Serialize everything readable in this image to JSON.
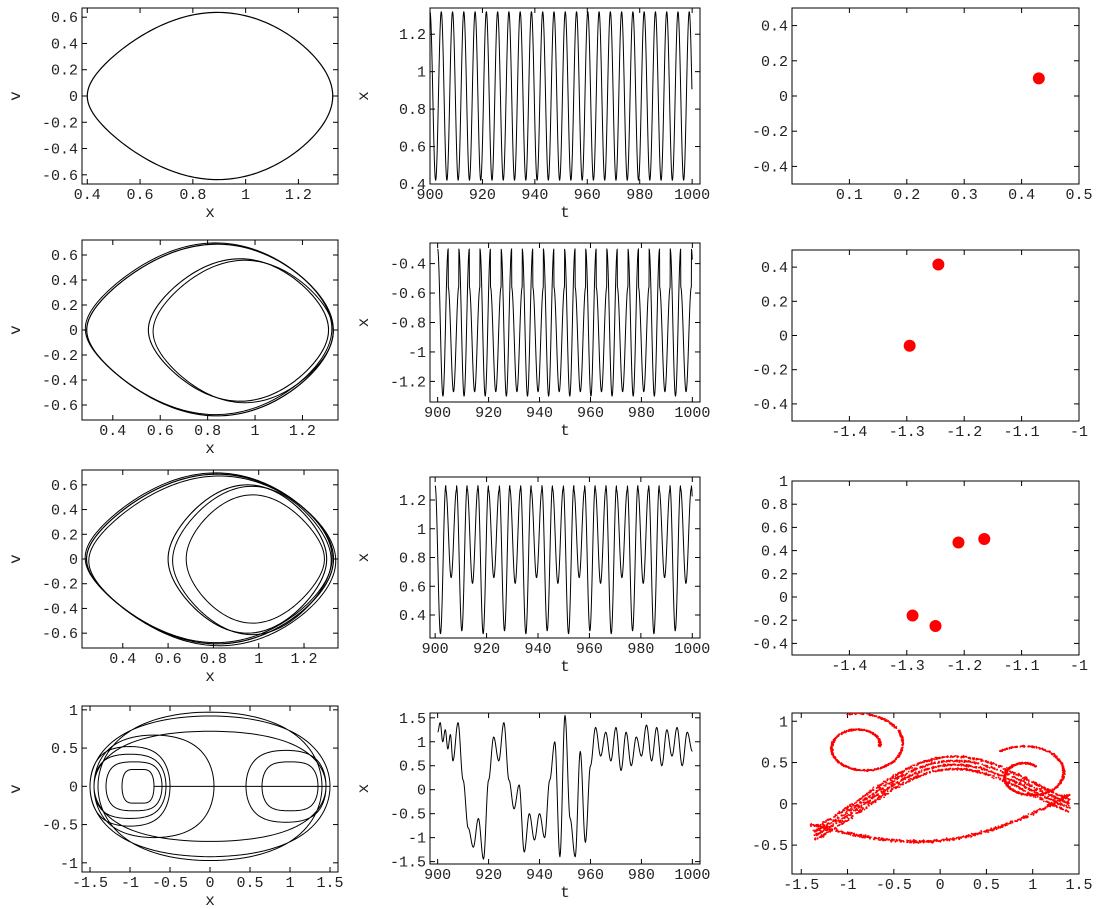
{
  "colors": {
    "trace": "#000000",
    "poincare": "#ff0000",
    "frame": "#000000"
  },
  "chart_data": [
    {
      "type": "line",
      "variant": "phase-portrait",
      "xlabel": "x",
      "ylabel": "v",
      "xlim": [
        0.38,
        1.35
      ],
      "ylim": [
        -0.67,
        0.67
      ],
      "xticks": [
        "0.4",
        "0.6",
        "0.8",
        "1",
        "1.2"
      ],
      "xtick_values": [
        0.4,
        0.6,
        0.8,
        1,
        1.2
      ],
      "yticks": [
        "-0.6",
        "-0.4",
        "-0.2",
        "0",
        "0.2",
        "0.4",
        "0.6"
      ],
      "ytick_values": [
        -0.6,
        -0.4,
        -0.2,
        0,
        0.2,
        0.4,
        0.6
      ],
      "orbit": {
        "x_min": 0.4,
        "x_max": 1.33,
        "v_amp": 0.64,
        "x_at_vmax": 0.95,
        "loops": 1
      }
    },
    {
      "type": "line",
      "variant": "time-series",
      "xlabel": "t",
      "ylabel": "x",
      "xlim": [
        900,
        1003
      ],
      "ylim": [
        0.4,
        1.34
      ],
      "xticks": [
        "900",
        "920",
        "940",
        "960",
        "980",
        "1000"
      ],
      "xtick_values": [
        900,
        920,
        940,
        960,
        980,
        1000
      ],
      "yticks": [
        "0.4",
        "0.6",
        "0.8",
        "1",
        "1.2"
      ],
      "ytick_values": [
        0.4,
        0.6,
        0.8,
        1,
        1.2
      ],
      "signal": {
        "period": 4.3,
        "min": 0.42,
        "max": 1.32,
        "t_start": 900,
        "t_end": 1000
      }
    },
    {
      "type": "scatter",
      "variant": "poincare",
      "xlabel": "",
      "ylabel": "",
      "xlim": [
        0,
        0.5
      ],
      "ylim": [
        -0.5,
        0.5
      ],
      "xticks": [
        "0.1",
        "0.2",
        "0.3",
        "0.4",
        "0.5"
      ],
      "xtick_values": [
        0.1,
        0.2,
        0.3,
        0.4,
        0.5
      ],
      "yticks": [
        "-0.4",
        "-0.2",
        "0",
        "0.2",
        "0.4"
      ],
      "ytick_values": [
        -0.4,
        -0.2,
        0,
        0.2,
        0.4
      ],
      "points": [
        [
          0.43,
          0.1
        ]
      ]
    },
    {
      "type": "line",
      "variant": "phase-portrait",
      "xlabel": "x",
      "ylabel": "v",
      "xlim": [
        0.27,
        1.35
      ],
      "ylim": [
        -0.72,
        0.72
      ],
      "xticks": [
        "0.4",
        "0.6",
        "0.8",
        "1",
        "1.2"
      ],
      "xtick_values": [
        0.4,
        0.6,
        0.8,
        1,
        1.2
      ],
      "yticks": [
        "-0.6",
        "-0.4",
        "-0.2",
        "0",
        "0.2",
        "0.4",
        "0.6"
      ],
      "ytick_values": [
        -0.6,
        -0.4,
        -0.2,
        0,
        0.2,
        0.4,
        0.6
      ],
      "orbit": {
        "x_min": 0.29,
        "x_max": 1.33,
        "v_amp": 0.69,
        "x_at_vmax": 0.9,
        "loops": 2,
        "inner": {
          "x_min": 0.55,
          "x_max": 1.31,
          "v_amp": 0.57,
          "x_at_vmax": 0.95
        }
      }
    },
    {
      "type": "line",
      "variant": "time-series",
      "xlabel": "t",
      "ylabel": "x",
      "xlim": [
        897,
        1003
      ],
      "ylim": [
        -1.34,
        -0.26
      ],
      "xticks": [
        "900",
        "920",
        "940",
        "960",
        "980",
        "1000"
      ],
      "xtick_values": [
        900,
        920,
        940,
        960,
        980,
        1000
      ],
      "yticks": [
        "-1.2",
        "-1",
        "-0.8",
        "-0.6",
        "-0.4"
      ],
      "ytick_values": [
        -1.2,
        -1,
        -0.8,
        -0.6,
        -0.4
      ],
      "signal": {
        "period": 8.3,
        "peaks": [
          -0.3,
          -0.56
        ],
        "troughs": [
          -1.3,
          -1.27
        ],
        "t_start": 900,
        "t_end": 1000
      }
    },
    {
      "type": "scatter",
      "variant": "poincare",
      "xlabel": "",
      "ylabel": "",
      "xlim": [
        -1.5,
        -1.0
      ],
      "ylim": [
        -0.5,
        0.5
      ],
      "xticks": [
        "-1.4",
        "-1.3",
        "-1.2",
        "-1.1",
        "-1"
      ],
      "xtick_values": [
        -1.4,
        -1.3,
        -1.2,
        -1.1,
        -1
      ],
      "yticks": [
        "-0.4",
        "-0.2",
        "0",
        "0.2",
        "0.4"
      ],
      "ytick_values": [
        -0.4,
        -0.2,
        0,
        0.2,
        0.4
      ],
      "points": [
        [
          -1.295,
          -0.06
        ],
        [
          -1.245,
          0.415
        ]
      ]
    },
    {
      "type": "line",
      "variant": "phase-portrait",
      "xlabel": "x",
      "ylabel": "v",
      "xlim": [
        0.22,
        1.35
      ],
      "ylim": [
        -0.72,
        0.72
      ],
      "xticks": [
        "0.4",
        "0.6",
        "0.8",
        "1",
        "1.2"
      ],
      "xtick_values": [
        0.4,
        0.6,
        0.8,
        1,
        1.2
      ],
      "yticks": [
        "-0.6",
        "-0.4",
        "-0.2",
        "0",
        "0.2",
        "0.4",
        "0.6"
      ],
      "ytick_values": [
        -0.6,
        -0.4,
        -0.2,
        0,
        0.2,
        0.4,
        0.6
      ],
      "orbit": {
        "x_min": 0.24,
        "x_max": 1.33,
        "v_amp": 0.69,
        "x_at_vmax": 0.88,
        "loops": 4,
        "inner": {
          "x_min": 0.6,
          "x_max": 1.3,
          "v_amp": 0.6,
          "x_at_vmax": 0.95
        }
      }
    },
    {
      "type": "line",
      "variant": "time-series",
      "xlabel": "t",
      "ylabel": "x",
      "xlim": [
        898,
        1003
      ],
      "ylim": [
        0.24,
        1.36
      ],
      "xticks": [
        "900",
        "920",
        "940",
        "960",
        "980",
        "1000"
      ],
      "xtick_values": [
        900,
        920,
        940,
        960,
        980,
        1000
      ],
      "yticks": [
        "0.4",
        "0.6",
        "0.8",
        "1",
        "1.2"
      ],
      "ytick_values": [
        0.4,
        0.6,
        0.8,
        1,
        1.2
      ],
      "signal": {
        "period": 16.6,
        "peaks": [
          1.3,
          1.27,
          1.3,
          1.28
        ],
        "troughs": [
          0.27,
          0.66,
          0.29,
          0.62
        ],
        "t_start": 900,
        "t_end": 1000
      }
    },
    {
      "type": "scatter",
      "variant": "poincare",
      "xlabel": "",
      "ylabel": "",
      "xlim": [
        -1.5,
        -1.0
      ],
      "ylim": [
        -0.5,
        1.0
      ],
      "xticks": [
        "-1.4",
        "-1.3",
        "-1.2",
        "-1.1",
        "-1"
      ],
      "xtick_values": [
        -1.4,
        -1.3,
        -1.2,
        -1.1,
        -1
      ],
      "yticks": [
        "-0.4",
        "-0.2",
        "0",
        "0.2",
        "0.4",
        "0.6",
        "0.8",
        "1"
      ],
      "ytick_values": [
        -0.4,
        -0.2,
        0,
        0.2,
        0.4,
        0.6,
        0.8,
        1
      ],
      "points": [
        [
          -1.29,
          -0.16
        ],
        [
          -1.25,
          -0.25
        ],
        [
          -1.21,
          0.47
        ],
        [
          -1.165,
          0.5
        ]
      ]
    },
    {
      "type": "line",
      "variant": "phase-portrait-chaotic",
      "xlabel": "x",
      "ylabel": "v",
      "xlim": [
        -1.6,
        1.6
      ],
      "ylim": [
        -1.12,
        1.05
      ],
      "xticks": [
        "-1.5",
        "-1",
        "-0.5",
        "0",
        "0.5",
        "1",
        "1.5"
      ],
      "xtick_values": [
        -1.5,
        -1,
        -0.5,
        0,
        0.5,
        1,
        1.5
      ],
      "yticks": [
        "-1",
        "-0.5",
        "0",
        "0.5",
        "1"
      ],
      "ytick_values": [
        -1,
        -0.5,
        0,
        0.5,
        1
      ]
    },
    {
      "type": "line",
      "variant": "time-series-chaotic",
      "xlabel": "t",
      "ylabel": "x",
      "xlim": [
        897,
        1003
      ],
      "ylim": [
        -1.55,
        1.6
      ],
      "xticks": [
        "900",
        "920",
        "940",
        "960",
        "980",
        "1000"
      ],
      "xtick_values": [
        900,
        920,
        940,
        960,
        980,
        1000
      ],
      "yticks": [
        "-1.5",
        "-1",
        "-0.5",
        "0",
        "0.5",
        "1",
        "1.5"
      ],
      "ytick_values": [
        -1.5,
        -1,
        -0.5,
        0,
        0.5,
        1,
        1.5
      ],
      "signal": {
        "t_start": 900,
        "t_end": 1000,
        "range": [
          -1.45,
          1.5
        ]
      }
    },
    {
      "type": "scatter",
      "variant": "poincare-strange-attractor",
      "xlabel": "",
      "ylabel": "",
      "xlim": [
        -1.6,
        1.5
      ],
      "ylim": [
        -0.85,
        1.1
      ],
      "xticks": [
        "-1.5",
        "-1",
        "-0.5",
        "0",
        "0.5",
        "1",
        "1.5"
      ],
      "xtick_values": [
        -1.5,
        -1,
        -0.5,
        0,
        0.5,
        1,
        1.5
      ],
      "yticks": [
        "-0.5",
        "0",
        "0.5",
        "1"
      ],
      "ytick_values": [
        -0.5,
        0,
        0.5,
        1
      ]
    }
  ]
}
